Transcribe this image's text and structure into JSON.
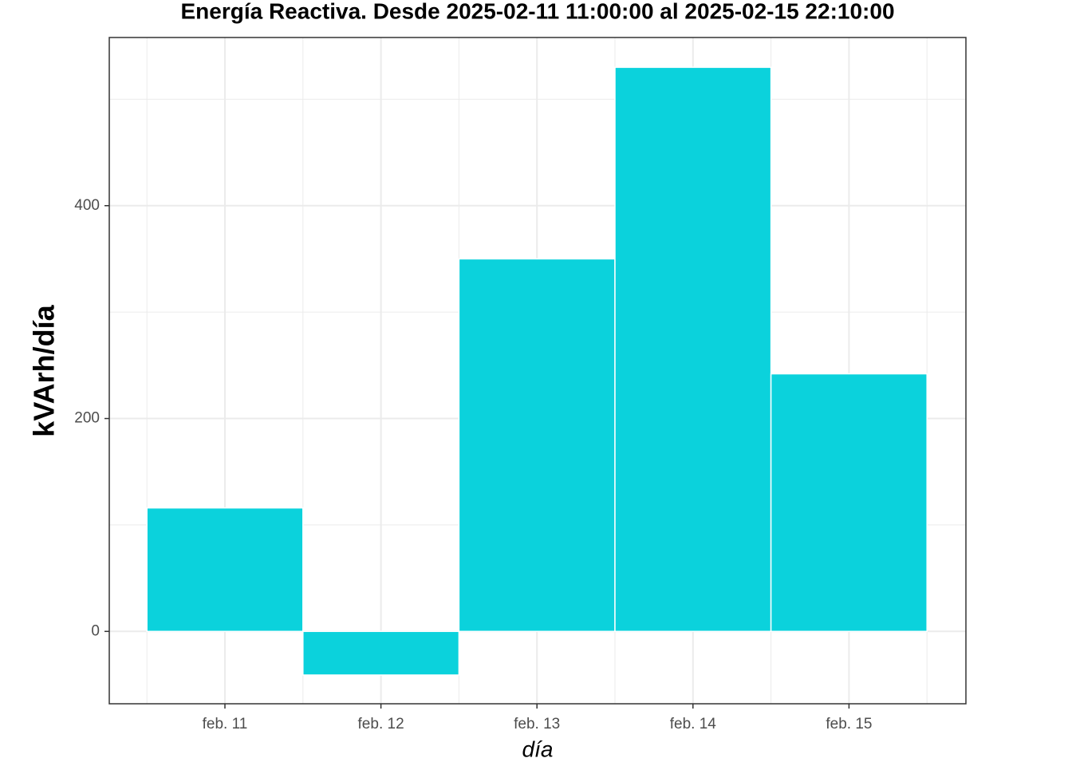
{
  "chart_data": {
    "type": "bar",
    "title": "Energía Reactiva. Desde  2025-02-11 11:00:00  al  2025-02-15 22:10:00",
    "x_label": "día",
    "y_label": "kVArh/día",
    "categories": [
      "feb. 11",
      "feb. 12",
      "feb. 13",
      "feb. 14",
      "feb. 15"
    ],
    "values": [
      116,
      -41,
      350,
      530,
      242
    ],
    "color": "#0bd2dc",
    "ylim": [
      -68,
      558
    ],
    "yticks": [
      0,
      200,
      400
    ],
    "y_minor_gridlines": [
      100,
      300,
      500
    ],
    "grid": true
  }
}
